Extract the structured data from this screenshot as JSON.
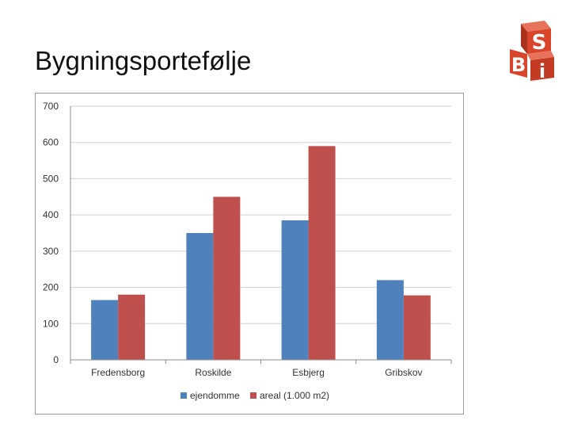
{
  "slide": {
    "title": "Bygningsportefølje"
  },
  "logo": {
    "icon": "sbi-logo-icon",
    "letters": [
      "S",
      "B",
      "i"
    ],
    "color": "#d9452b"
  },
  "chart_data": {
    "type": "bar",
    "title": "",
    "xlabel": "",
    "ylabel": "",
    "categories": [
      "Fredensborg",
      "Roskilde",
      "Esbjerg",
      "Gribskov"
    ],
    "series": [
      {
        "name": "ejendomme",
        "values": [
          165,
          350,
          385,
          220
        ],
        "color": "#4f81bd"
      },
      {
        "name": "areal (1.000 m2)",
        "values": [
          180,
          450,
          590,
          178
        ],
        "color": "#c0504d"
      }
    ],
    "ylim": [
      0,
      700
    ],
    "yticks": [
      "0",
      "100",
      "200",
      "300",
      "400",
      "500",
      "600",
      "700"
    ],
    "grid": true,
    "legend_position": "bottom"
  }
}
